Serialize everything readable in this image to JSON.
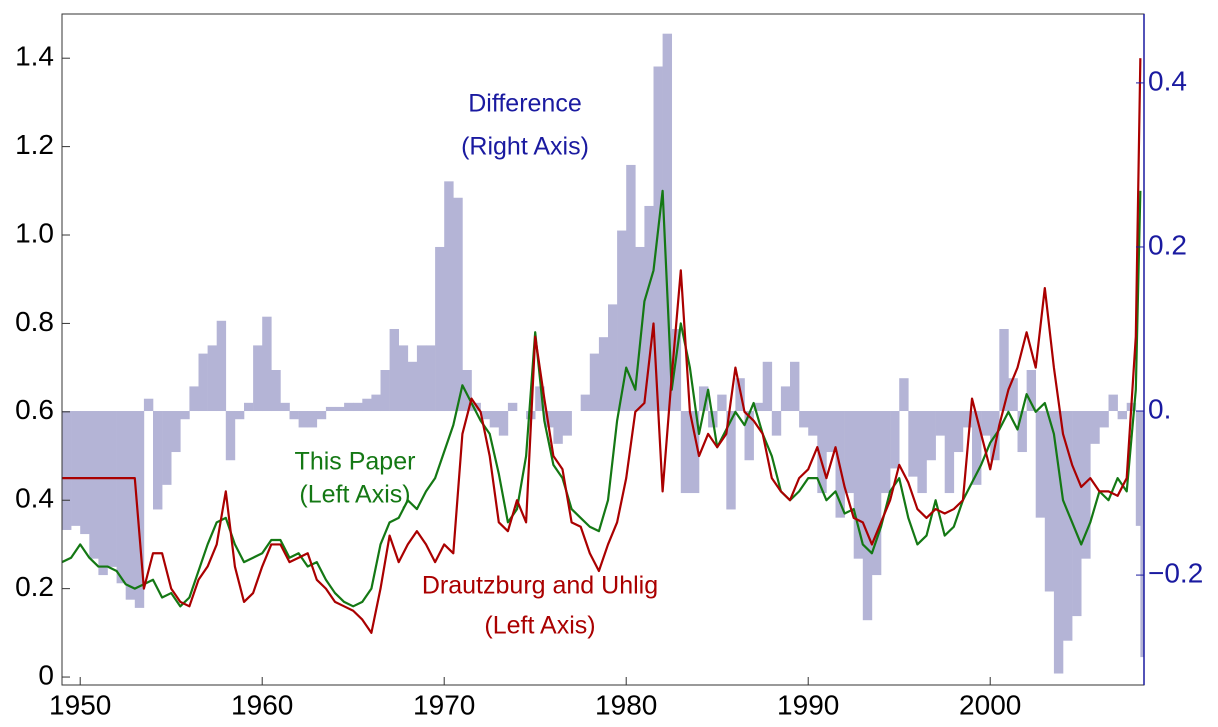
{
  "chart_data": {
    "type": "bar-line",
    "x": [
      1949,
      1949.5,
      1950,
      1950.5,
      1951,
      1951.5,
      1952,
      1952.5,
      1953,
      1953.5,
      1954,
      1954.5,
      1955,
      1955.5,
      1956,
      1956.5,
      1957,
      1957.5,
      1958,
      1958.5,
      1959,
      1959.5,
      1960,
      1960.5,
      1961,
      1961.5,
      1962,
      1962.5,
      1963,
      1963.5,
      1964,
      1964.5,
      1965,
      1965.5,
      1966,
      1966.5,
      1967,
      1967.5,
      1968,
      1968.5,
      1969,
      1969.5,
      1970,
      1970.5,
      1971,
      1971.5,
      1972,
      1972.5,
      1973,
      1973.5,
      1974,
      1974.5,
      1975,
      1975.5,
      1976,
      1976.5,
      1977,
      1977.5,
      1978,
      1978.5,
      1979,
      1979.5,
      1980,
      1980.5,
      1981,
      1981.5,
      1982,
      1982.5,
      1983,
      1983.5,
      1984,
      1984.5,
      1985,
      1985.5,
      1986,
      1986.5,
      1987,
      1987.5,
      1988,
      1988.5,
      1989,
      1989.5,
      1990,
      1990.5,
      1991,
      1991.5,
      1992,
      1992.5,
      1993,
      1993.5,
      1994,
      1994.5,
      1995,
      1995.5,
      1996,
      1996.5,
      1997,
      1997.5,
      1998,
      1998.5,
      1999,
      1999.5,
      2000,
      2000.5,
      2001,
      2001.5,
      2002,
      2002.5,
      2003,
      2003.5,
      2004,
      2004.5,
      2005,
      2005.5,
      2006,
      2006.5,
      2007,
      2007.5,
      2008,
      2008.25
    ],
    "xlim": [
      1949,
      2008.45
    ],
    "xticks": [
      1950,
      1960,
      1970,
      1980,
      1990,
      2000
    ],
    "ylim": [
      -0.018,
      1.5
    ],
    "yticks": [
      0,
      0.2,
      0.4,
      0.6,
      0.8,
      {
        "value": 1,
        "label": "1.0"
      },
      1.2,
      1.4
    ],
    "y2lim": [
      -0.334,
      0.484
    ],
    "y2ticks": [
      {
        "value": -0.2,
        "label": "−0.2"
      },
      {
        "value": 0,
        "label": "0."
      },
      0.2,
      0.4
    ],
    "y2color": "#1a1aa0",
    "series": [
      {
        "name": "Difference",
        "note": "(Right Axis)",
        "axis": "y2",
        "kind": "bar",
        "color": "#b4b4d6",
        "label_color": "#1a1aa0",
        "values": [
          -0.145,
          -0.14,
          -0.15,
          -0.18,
          -0.2,
          -0.19,
          -0.21,
          -0.23,
          -0.24,
          0.015,
          -0.12,
          -0.09,
          -0.05,
          -0.01,
          0.03,
          0.07,
          0.08,
          0.11,
          -0.06,
          -0.01,
          0.01,
          0.08,
          0.115,
          0.05,
          0.01,
          -0.01,
          -0.02,
          -0.02,
          -0.01,
          0.005,
          0.005,
          0.01,
          0.01,
          0.015,
          0.02,
          0.05,
          0.1,
          0.08,
          0.06,
          0.08,
          0.08,
          0.2,
          0.28,
          0.26,
          0.05,
          0.01,
          -0.01,
          -0.02,
          -0.03,
          0.01,
          0,
          -0.01,
          0.03,
          -0.02,
          -0.04,
          -0.03,
          0,
          0.02,
          0.07,
          0.09,
          0.13,
          0.22,
          0.3,
          0.2,
          0.25,
          0.42,
          0.46,
          0.1,
          -0.1,
          -0.1,
          0.03,
          -0.02,
          0.02,
          -0.12,
          0.04,
          -0.06,
          0.01,
          0.06,
          -0.03,
          0.03,
          0.06,
          -0.02,
          -0.03,
          -0.1,
          -0.05,
          -0.13,
          -0.1,
          -0.18,
          -0.255,
          -0.2,
          -0.1,
          -0.07,
          0.04,
          -0.08,
          -0.1,
          -0.06,
          -0.03,
          -0.1,
          -0.05,
          -0.02,
          -0.09,
          -0.03,
          -0.06,
          0.1,
          0.04,
          -0.05,
          0.05,
          -0.13,
          -0.22,
          -0.32,
          -0.28,
          -0.25,
          -0.18,
          -0.04,
          -0.02,
          0.02,
          -0.01,
          0.01,
          -0.14,
          -0.3
        ]
      },
      {
        "name": "This Paper",
        "note": "(Left Axis)",
        "kind": "line",
        "color": "#147814",
        "label_color": "#147814",
        "values": [
          0.26,
          0.27,
          0.3,
          0.27,
          0.25,
          0.25,
          0.24,
          0.21,
          0.2,
          0.21,
          0.22,
          0.18,
          0.19,
          0.16,
          0.18,
          0.24,
          0.3,
          0.35,
          0.36,
          0.3,
          0.26,
          0.27,
          0.28,
          0.31,
          0.31,
          0.27,
          0.28,
          0.25,
          0.26,
          0.22,
          0.19,
          0.17,
          0.16,
          0.17,
          0.2,
          0.3,
          0.35,
          0.36,
          0.4,
          0.38,
          0.42,
          0.45,
          0.51,
          0.57,
          0.66,
          0.62,
          0.58,
          0.55,
          0.46,
          0.35,
          0.38,
          0.5,
          0.78,
          0.58,
          0.48,
          0.45,
          0.38,
          0.36,
          0.34,
          0.33,
          0.4,
          0.58,
          0.7,
          0.65,
          0.85,
          0.92,
          1.1,
          0.65,
          0.8,
          0.7,
          0.55,
          0.65,
          0.52,
          0.56,
          0.6,
          0.57,
          0.62,
          0.55,
          0.5,
          0.42,
          0.4,
          0.42,
          0.45,
          0.45,
          0.4,
          0.42,
          0.37,
          0.38,
          0.3,
          0.28,
          0.34,
          0.42,
          0.45,
          0.36,
          0.3,
          0.32,
          0.4,
          0.32,
          0.34,
          0.4,
          0.44,
          0.48,
          0.53,
          0.56,
          0.6,
          0.56,
          0.64,
          0.6,
          0.62,
          0.55,
          0.4,
          0.35,
          0.3,
          0.35,
          0.42,
          0.4,
          0.45,
          0.42,
          0.65,
          1.1
        ]
      },
      {
        "name": "Drautzburg and Uhlig",
        "note": "(Left Axis)",
        "kind": "line",
        "color": "#aa0000",
        "label_color": "#aa0000",
        "values": [
          0.45,
          0.45,
          0.45,
          0.45,
          0.45,
          0.45,
          0.45,
          0.45,
          0.45,
          0.2,
          0.28,
          0.28,
          0.2,
          0.17,
          0.16,
          0.22,
          0.25,
          0.3,
          0.42,
          0.25,
          0.17,
          0.19,
          0.25,
          0.3,
          0.3,
          0.26,
          0.27,
          0.28,
          0.22,
          0.2,
          0.17,
          0.16,
          0.15,
          0.13,
          0.1,
          0.2,
          0.32,
          0.26,
          0.3,
          0.33,
          0.3,
          0.26,
          0.3,
          0.28,
          0.55,
          0.63,
          0.6,
          0.5,
          0.35,
          0.33,
          0.4,
          0.35,
          0.77,
          0.63,
          0.5,
          0.47,
          0.35,
          0.34,
          0.28,
          0.24,
          0.3,
          0.35,
          0.45,
          0.6,
          0.62,
          0.8,
          0.42,
          0.68,
          0.92,
          0.6,
          0.5,
          0.55,
          0.52,
          0.55,
          0.7,
          0.6,
          0.58,
          0.55,
          0.45,
          0.42,
          0.4,
          0.45,
          0.47,
          0.52,
          0.45,
          0.52,
          0.43,
          0.36,
          0.35,
          0.3,
          0.35,
          0.4,
          0.48,
          0.44,
          0.38,
          0.36,
          0.38,
          0.37,
          0.38,
          0.4,
          0.63,
          0.55,
          0.47,
          0.57,
          0.65,
          0.7,
          0.78,
          0.7,
          0.88,
          0.7,
          0.55,
          0.48,
          0.43,
          0.45,
          0.42,
          0.42,
          0.41,
          0.45,
          0.77,
          1.4
        ]
      }
    ]
  }
}
